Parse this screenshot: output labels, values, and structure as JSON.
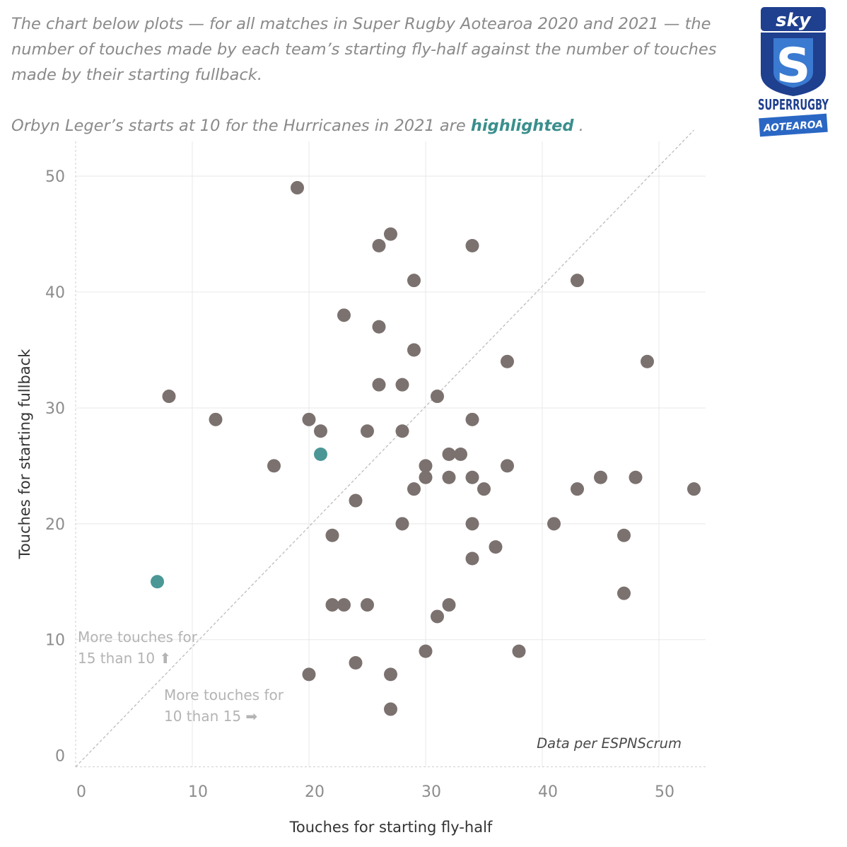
{
  "intro": {
    "line1": "The chart below plots — for all matches in Super Rugby Aotearoa 2020 and 2021 — the number of touches made by each team’s starting fly-half against the number of touches made by their starting fullback.",
    "line2_pre": "Orbyn Leger’s starts at 10 for the Hurricanes in 2021 are ",
    "line2_highlight": "highlighted",
    "line2_post": " ."
  },
  "logo": {
    "top": "sky",
    "middle": "SUPERRUGBY",
    "bottom": "AOTEAROA"
  },
  "colors": {
    "point": "#7b716f",
    "highlight": "#4a9796",
    "grid": "#e8e8e8",
    "diagonal": "#bdbdbd"
  },
  "chart_data": {
    "type": "scatter",
    "xlabel": "Touches for starting fly-half",
    "ylabel": "Touches for starting fullback",
    "xlim": [
      0,
      54
    ],
    "ylim": [
      -1,
      53
    ],
    "xticks": [
      0,
      10,
      20,
      30,
      40,
      50
    ],
    "yticks": [
      0,
      10,
      20,
      30,
      40,
      50
    ],
    "grid": true,
    "diagonal_reference_line": true,
    "points": [
      {
        "x": 19,
        "y": 49
      },
      {
        "x": 26,
        "y": 44
      },
      {
        "x": 27,
        "y": 45
      },
      {
        "x": 34,
        "y": 44
      },
      {
        "x": 29,
        "y": 41
      },
      {
        "x": 43,
        "y": 41
      },
      {
        "x": 23,
        "y": 38
      },
      {
        "x": 26,
        "y": 37
      },
      {
        "x": 29,
        "y": 35
      },
      {
        "x": 37,
        "y": 34
      },
      {
        "x": 49,
        "y": 34
      },
      {
        "x": 26,
        "y": 32
      },
      {
        "x": 28,
        "y": 32
      },
      {
        "x": 8,
        "y": 31
      },
      {
        "x": 31,
        "y": 31
      },
      {
        "x": 12,
        "y": 29
      },
      {
        "x": 20,
        "y": 29
      },
      {
        "x": 34,
        "y": 29
      },
      {
        "x": 21,
        "y": 28
      },
      {
        "x": 25,
        "y": 28
      },
      {
        "x": 28,
        "y": 28
      },
      {
        "x": 32,
        "y": 26
      },
      {
        "x": 33,
        "y": 26
      },
      {
        "x": 17,
        "y": 25
      },
      {
        "x": 30,
        "y": 25
      },
      {
        "x": 37,
        "y": 25
      },
      {
        "x": 30,
        "y": 24
      },
      {
        "x": 32,
        "y": 24
      },
      {
        "x": 34,
        "y": 24
      },
      {
        "x": 45,
        "y": 24
      },
      {
        "x": 48,
        "y": 24
      },
      {
        "x": 29,
        "y": 23
      },
      {
        "x": 35,
        "y": 23
      },
      {
        "x": 43,
        "y": 23
      },
      {
        "x": 53,
        "y": 23
      },
      {
        "x": 24,
        "y": 22
      },
      {
        "x": 28,
        "y": 20
      },
      {
        "x": 34,
        "y": 20
      },
      {
        "x": 41,
        "y": 20
      },
      {
        "x": 22,
        "y": 19
      },
      {
        "x": 47,
        "y": 19
      },
      {
        "x": 36,
        "y": 18
      },
      {
        "x": 34,
        "y": 17
      },
      {
        "x": 47,
        "y": 14
      },
      {
        "x": 22,
        "y": 13
      },
      {
        "x": 23,
        "y": 13
      },
      {
        "x": 25,
        "y": 13
      },
      {
        "x": 32,
        "y": 13
      },
      {
        "x": 31,
        "y": 12
      },
      {
        "x": 30,
        "y": 9
      },
      {
        "x": 38,
        "y": 9
      },
      {
        "x": 24,
        "y": 8
      },
      {
        "x": 20,
        "y": 7
      },
      {
        "x": 27,
        "y": 7
      },
      {
        "x": 27,
        "y": 4
      }
    ],
    "highlighted_points": [
      {
        "x": 21,
        "y": 26
      },
      {
        "x": 7,
        "y": 15
      }
    ],
    "annotations": {
      "upper_line1": "More touches for",
      "upper_line2": "15 than 10 ⬆",
      "lower_line1": "More touches for",
      "lower_line2": "10 than 15 ➡",
      "credit": "Data per ESPNScrum"
    }
  }
}
